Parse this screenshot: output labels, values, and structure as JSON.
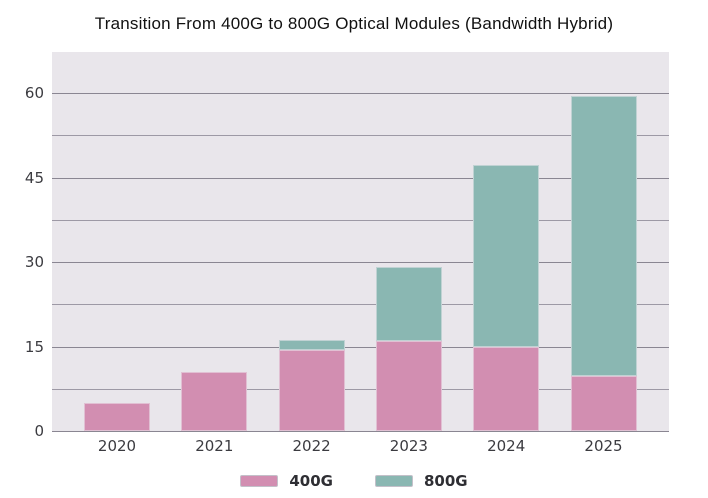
{
  "title": "Transition From 400G to 800G Optical Modules (Bandwidth Hybrid)",
  "colors": {
    "series_400g": "#d28eb1",
    "series_800g": "#8ab7b2",
    "plot_background": "#e9e6eb",
    "grid_major": "#8a8692",
    "grid_minor": "#9d99a5",
    "tick_text": "#3b3b40"
  },
  "chart_data": {
    "type": "bar",
    "stacked": true,
    "title": "Transition From 400G to 800G Optical Modules (Bandwidth Hybrid)",
    "categories": [
      "2020",
      "2021",
      "2022",
      "2023",
      "2024",
      "2025"
    ],
    "series": [
      {
        "name": "400G",
        "color": "#d28eb1",
        "values": [
          5,
          10.5,
          14.3,
          16,
          15,
          9.7
        ]
      },
      {
        "name": "800G",
        "color": "#8ab7b2",
        "values": [
          0,
          0,
          1.9,
          13.2,
          32.3,
          49.8
        ]
      }
    ],
    "stack_totals": [
      5,
      10.5,
      16.2,
      29.2,
      47.3,
      59.5
    ],
    "xlabel": "",
    "ylabel": "",
    "y_ticks": [
      0,
      15,
      30,
      45,
      60
    ],
    "y_minor_ticks": [
      7.5,
      22.5,
      37.5,
      52.5
    ],
    "ylim": [
      0,
      67.3
    ],
    "grid": true,
    "legend_position": "bottom"
  },
  "legend": {
    "items": [
      {
        "label": "400G",
        "color": "#d28eb1"
      },
      {
        "label": "800G",
        "color": "#8ab7b2"
      }
    ]
  }
}
